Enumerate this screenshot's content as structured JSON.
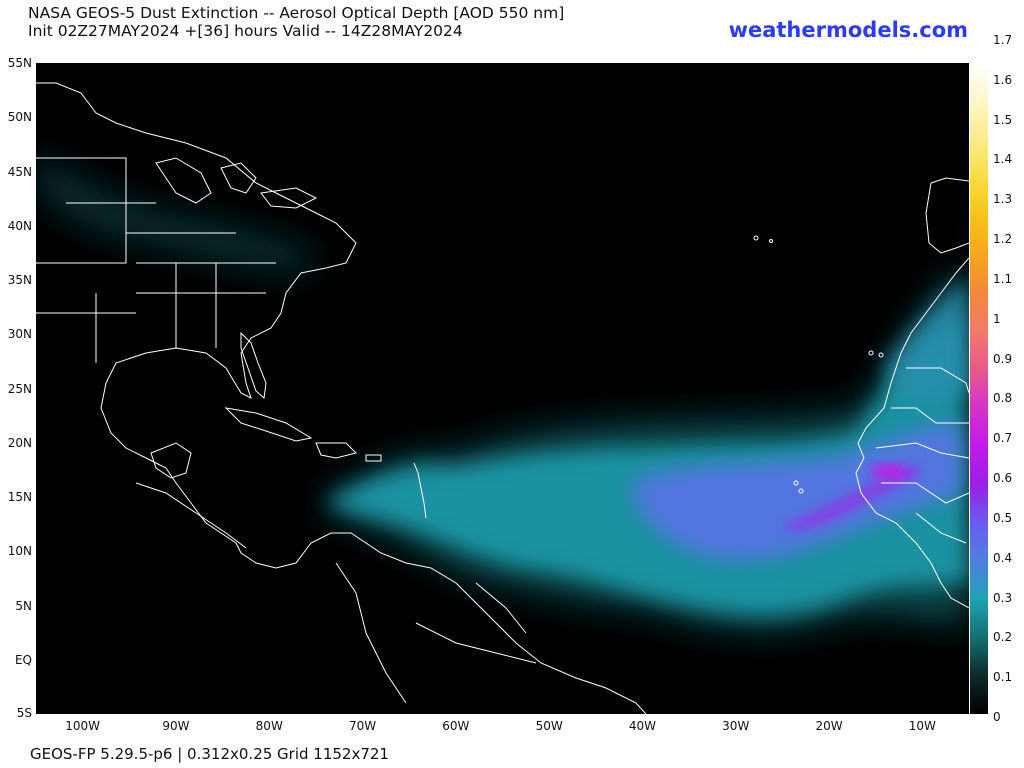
{
  "header": {
    "title_line1": "NASA GEOS-5 Dust Extinction -- Aerosol Optical Depth [AOD 550 nm]",
    "title_line2": "Init 02Z27MAY2024 +[36] hours Valid -- 14Z28MAY2024",
    "brand": "weathermodels.com",
    "brand_color": "#2b3bff"
  },
  "map": {
    "projection": "plate-carree",
    "lon_range": [
      -105,
      -5
    ],
    "lat_range": [
      -5,
      55
    ],
    "lat_labels": [
      "55N",
      "50N",
      "45N",
      "40N",
      "35N",
      "30N",
      "25N",
      "20N",
      "15N",
      "10N",
      "5N",
      "EQ",
      "5S"
    ],
    "lat_values": [
      55,
      50,
      45,
      40,
      35,
      30,
      25,
      20,
      15,
      10,
      5,
      0,
      -5
    ],
    "lon_labels": [
      "100W",
      "90W",
      "80W",
      "70W",
      "60W",
      "50W",
      "40W",
      "30W",
      "20W",
      "10W"
    ],
    "lon_values": [
      -100,
      -90,
      -80,
      -70,
      -60,
      -50,
      -40,
      -30,
      -20,
      -10
    ],
    "background_color": "#000000",
    "boundary_color": "#ffffff"
  },
  "colorbar": {
    "min": 0,
    "max": 1.7,
    "labels": [
      "1.7",
      "1.6",
      "1.5",
      "1.4",
      "1.3",
      "1.2",
      "1.1",
      "1",
      "0.9",
      "0.8",
      "0.7",
      "0.6",
      "0.5",
      "0.4",
      "0.3",
      "0.2",
      "0.1",
      "0"
    ],
    "values": [
      1.7,
      1.6,
      1.5,
      1.4,
      1.3,
      1.2,
      1.1,
      1.0,
      0.9,
      0.8,
      0.7,
      0.6,
      0.5,
      0.4,
      0.3,
      0.2,
      0.1,
      0
    ],
    "stops": [
      {
        "value": 0.0,
        "color": "#000000"
      },
      {
        "value": 0.1,
        "color": "#0d2a2a"
      },
      {
        "value": 0.2,
        "color": "#147070"
      },
      {
        "value": 0.3,
        "color": "#1ea3b4"
      },
      {
        "value": 0.4,
        "color": "#4f7fe0"
      },
      {
        "value": 0.5,
        "color": "#6b5cf0"
      },
      {
        "value": 0.6,
        "color": "#9a1fe6"
      },
      {
        "value": 0.7,
        "color": "#c21ae8"
      },
      {
        "value": 0.8,
        "color": "#d633c8"
      },
      {
        "value": 0.9,
        "color": "#e55a8c"
      },
      {
        "value": 1.0,
        "color": "#f27a6a"
      },
      {
        "value": 1.1,
        "color": "#f5883a"
      },
      {
        "value": 1.2,
        "color": "#f7a61c"
      },
      {
        "value": 1.3,
        "color": "#f8c21a"
      },
      {
        "value": 1.4,
        "color": "#f9dc40"
      },
      {
        "value": 1.5,
        "color": "#fbeb8a"
      },
      {
        "value": 1.6,
        "color": "#fdf6c8"
      },
      {
        "value": 1.7,
        "color": "#ffffff"
      }
    ]
  },
  "footer": {
    "text": "GEOS-FP 5.29.5-p6 | 0.312x0.25 Grid 1152x721"
  }
}
